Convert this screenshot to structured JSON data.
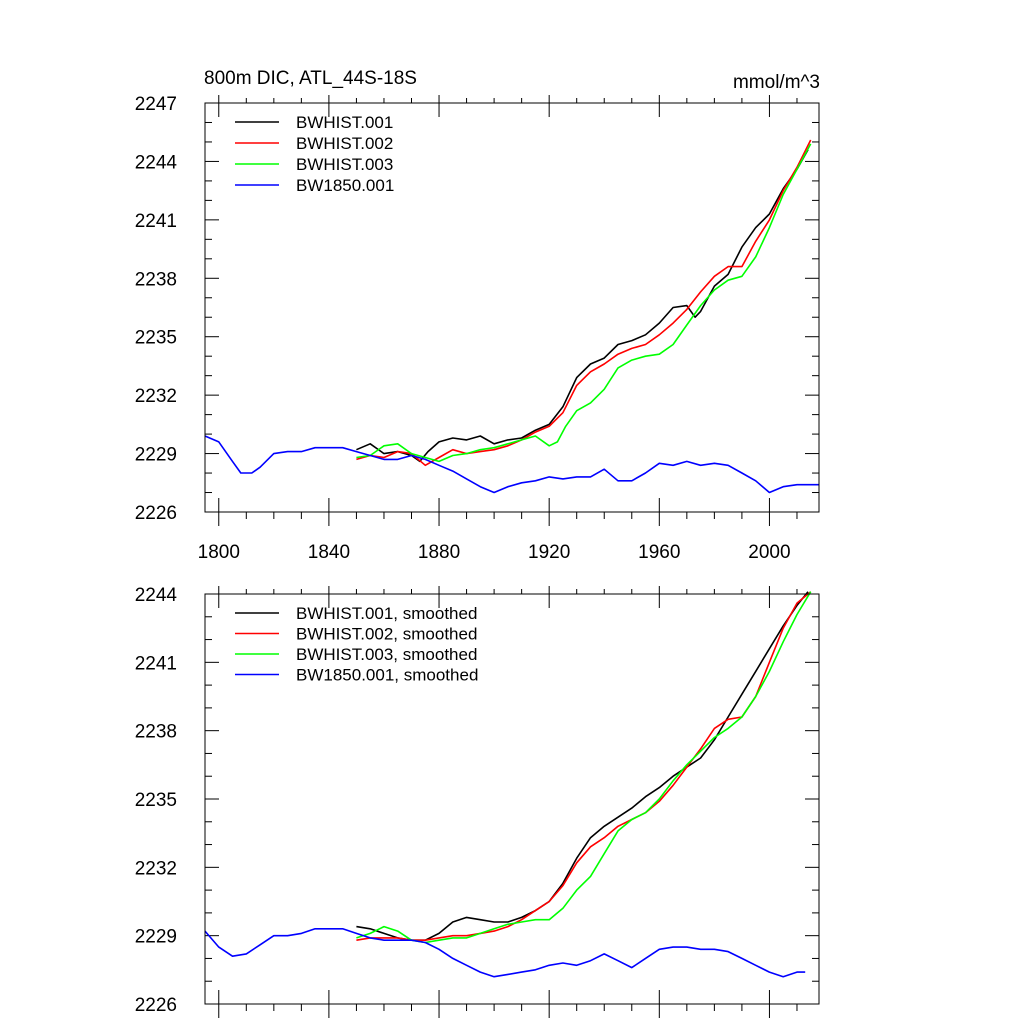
{
  "chart_data": [
    {
      "type": "line",
      "title_left": "800m DIC, ATL_44S-18S",
      "title_right": "mmol/m^3",
      "xlim": [
        1795,
        2018
      ],
      "ylim": [
        2226,
        2247
      ],
      "yticks": [
        "2226",
        "2229",
        "2232",
        "2235",
        "2238",
        "2241",
        "2244",
        "2247"
      ],
      "xticks": [
        "1800",
        "1840",
        "1880",
        "1920",
        "1960",
        "2000"
      ],
      "legend_position": "top-left",
      "series": [
        {
          "name": "BWHIST.001",
          "color": "#000000",
          "x": [
            1850,
            1855,
            1860,
            1865,
            1870,
            1873,
            1876,
            1880,
            1885,
            1890,
            1895,
            1900,
            1905,
            1910,
            1915,
            1920,
            1925,
            1930,
            1935,
            1940,
            1945,
            1950,
            1955,
            1960,
            1965,
            1970,
            1973,
            1975,
            1980,
            1985,
            1990,
            1995,
            2000,
            2005,
            2010,
            2014
          ],
          "y": [
            2229.2,
            2229.5,
            2229.0,
            2229.1,
            2228.9,
            2228.6,
            2229.1,
            2229.6,
            2229.8,
            2229.7,
            2229.9,
            2229.5,
            2229.7,
            2229.8,
            2230.2,
            2230.5,
            2231.4,
            2232.9,
            2233.6,
            2233.9,
            2234.6,
            2234.8,
            2235.1,
            2235.7,
            2236.5,
            2236.6,
            2236.0,
            2236.3,
            2237.6,
            2238.2,
            2239.6,
            2240.6,
            2241.3,
            2242.6,
            2243.6,
            2244.6
          ]
        },
        {
          "name": "BWHIST.002",
          "color": "#ff0000",
          "x": [
            1850,
            1855,
            1860,
            1865,
            1870,
            1875,
            1880,
            1885,
            1890,
            1895,
            1900,
            1905,
            1910,
            1915,
            1920,
            1925,
            1930,
            1935,
            1940,
            1945,
            1950,
            1955,
            1960,
            1965,
            1970,
            1975,
            1980,
            1985,
            1990,
            1995,
            2000,
            2005,
            2010,
            2015
          ],
          "y": [
            2228.7,
            2228.9,
            2228.8,
            2229.1,
            2229.0,
            2228.4,
            2228.8,
            2229.2,
            2229.0,
            2229.1,
            2229.2,
            2229.4,
            2229.7,
            2230.1,
            2230.4,
            2231.1,
            2232.5,
            2233.2,
            2233.6,
            2234.1,
            2234.4,
            2234.6,
            2235.1,
            2235.7,
            2236.4,
            2237.3,
            2238.1,
            2238.6,
            2238.6,
            2239.9,
            2241.0,
            2242.5,
            2243.7,
            2245.1
          ]
        },
        {
          "name": "BWHIST.003",
          "color": "#00ff00",
          "x": [
            1850,
            1855,
            1860,
            1865,
            1870,
            1875,
            1880,
            1885,
            1890,
            1895,
            1900,
            1905,
            1910,
            1915,
            1920,
            1923,
            1926,
            1930,
            1935,
            1940,
            1945,
            1950,
            1955,
            1960,
            1965,
            1970,
            1975,
            1980,
            1985,
            1990,
            1995,
            2000,
            2005,
            2010,
            2015
          ],
          "y": [
            2228.8,
            2228.9,
            2229.4,
            2229.5,
            2229.0,
            2228.8,
            2228.6,
            2228.9,
            2229.0,
            2229.2,
            2229.3,
            2229.5,
            2229.7,
            2229.9,
            2229.4,
            2229.6,
            2230.4,
            2231.2,
            2231.6,
            2232.3,
            2233.4,
            2233.8,
            2234.0,
            2234.1,
            2234.6,
            2235.6,
            2236.6,
            2237.4,
            2237.9,
            2238.1,
            2239.1,
            2240.6,
            2242.3,
            2243.6,
            2244.9
          ]
        },
        {
          "name": "BW1850.001",
          "color": "#0000ff",
          "x": [
            1795,
            1800,
            1805,
            1808,
            1812,
            1815,
            1820,
            1825,
            1830,
            1835,
            1840,
            1845,
            1850,
            1855,
            1860,
            1865,
            1870,
            1875,
            1880,
            1885,
            1890,
            1895,
            1900,
            1905,
            1910,
            1915,
            1920,
            1925,
            1930,
            1935,
            1940,
            1945,
            1950,
            1955,
            1960,
            1965,
            1970,
            1975,
            1980,
            1985,
            1990,
            1995,
            2000,
            2005,
            2010,
            2018
          ],
          "y": [
            2229.9,
            2229.6,
            2228.6,
            2228.0,
            2228.0,
            2228.3,
            2229.0,
            2229.1,
            2229.1,
            2229.3,
            2229.3,
            2229.3,
            2229.1,
            2228.9,
            2228.7,
            2228.7,
            2228.9,
            2228.7,
            2228.4,
            2228.1,
            2227.7,
            2227.3,
            2227.0,
            2227.3,
            2227.5,
            2227.6,
            2227.8,
            2227.7,
            2227.8,
            2227.8,
            2228.2,
            2227.6,
            2227.6,
            2228.0,
            2228.5,
            2228.4,
            2228.6,
            2228.4,
            2228.5,
            2228.4,
            2228.0,
            2227.6,
            2227.0,
            2227.3,
            2227.4,
            2227.4
          ]
        }
      ]
    },
    {
      "type": "line",
      "title_left": "",
      "title_right": "",
      "xlim": [
        1795,
        2018
      ],
      "ylim": [
        2226,
        2244
      ],
      "yticks": [
        "2226",
        "2229",
        "2232",
        "2235",
        "2238",
        "2241",
        "2244"
      ],
      "xticks": [],
      "legend_position": "top-left",
      "series": [
        {
          "name": "BWHIST.001, smoothed",
          "color": "#000000",
          "x": [
            1850,
            1855,
            1860,
            1865,
            1870,
            1875,
            1880,
            1885,
            1890,
            1895,
            1900,
            1905,
            1910,
            1915,
            1920,
            1925,
            1930,
            1935,
            1940,
            1945,
            1950,
            1955,
            1960,
            1965,
            1970,
            1975,
            1980,
            1985,
            1990,
            1995,
            2000,
            2005,
            2010,
            2014
          ],
          "y": [
            2229.4,
            2229.3,
            2229.1,
            2228.9,
            2228.8,
            2228.8,
            2229.1,
            2229.6,
            2229.8,
            2229.7,
            2229.6,
            2229.6,
            2229.8,
            2230.1,
            2230.5,
            2231.3,
            2232.4,
            2233.3,
            2233.8,
            2234.2,
            2234.6,
            2235.1,
            2235.5,
            2236.0,
            2236.4,
            2236.8,
            2237.6,
            2238.6,
            2239.6,
            2240.6,
            2241.6,
            2242.6,
            2243.5,
            2244.1
          ]
        },
        {
          "name": "BWHIST.002, smoothed",
          "color": "#ff0000",
          "x": [
            1850,
            1855,
            1860,
            1865,
            1870,
            1875,
            1880,
            1885,
            1890,
            1895,
            1900,
            1905,
            1910,
            1915,
            1920,
            1925,
            1930,
            1935,
            1940,
            1945,
            1950,
            1955,
            1960,
            1965,
            1970,
            1975,
            1980,
            1985,
            1990,
            1995,
            2000,
            2005,
            2010,
            2015
          ],
          "y": [
            2228.8,
            2228.9,
            2228.9,
            2228.9,
            2228.8,
            2228.8,
            2228.9,
            2229.0,
            2229.0,
            2229.1,
            2229.2,
            2229.4,
            2229.7,
            2230.1,
            2230.5,
            2231.2,
            2232.2,
            2232.9,
            2233.3,
            2233.8,
            2234.1,
            2234.4,
            2234.9,
            2235.6,
            2236.4,
            2237.2,
            2238.1,
            2238.5,
            2238.6,
            2239.5,
            2241.0,
            2242.5,
            2243.6,
            2244.1
          ]
        },
        {
          "name": "BWHIST.003, smoothed",
          "color": "#00ff00",
          "x": [
            1850,
            1855,
            1860,
            1865,
            1870,
            1875,
            1880,
            1885,
            1890,
            1895,
            1900,
            1905,
            1910,
            1915,
            1920,
            1925,
            1930,
            1935,
            1940,
            1945,
            1950,
            1955,
            1960,
            1965,
            1970,
            1975,
            1980,
            1985,
            1990,
            1995,
            2000,
            2005,
            2010,
            2015
          ],
          "y": [
            2228.9,
            2229.1,
            2229.4,
            2229.2,
            2228.8,
            2228.7,
            2228.8,
            2228.9,
            2228.9,
            2229.1,
            2229.3,
            2229.5,
            2229.6,
            2229.7,
            2229.7,
            2230.2,
            2231.0,
            2231.6,
            2232.6,
            2233.6,
            2234.1,
            2234.4,
            2235.0,
            2235.8,
            2236.5,
            2237.1,
            2237.7,
            2238.1,
            2238.6,
            2239.5,
            2240.6,
            2241.9,
            2243.1,
            2244.1
          ]
        },
        {
          "name": "BW1850.001, smoothed",
          "color": "#0000ff",
          "x": [
            1795,
            1800,
            1805,
            1810,
            1815,
            1820,
            1825,
            1830,
            1835,
            1840,
            1845,
            1850,
            1855,
            1860,
            1865,
            1870,
            1875,
            1880,
            1885,
            1890,
            1895,
            1900,
            1905,
            1910,
            1915,
            1920,
            1925,
            1930,
            1935,
            1940,
            1945,
            1950,
            1955,
            1960,
            1965,
            1970,
            1975,
            1980,
            1985,
            1990,
            1995,
            2000,
            2005,
            2010,
            2013
          ],
          "y": [
            2229.2,
            2228.5,
            2228.1,
            2228.2,
            2228.6,
            2229.0,
            2229.0,
            2229.1,
            2229.3,
            2229.3,
            2229.3,
            2229.1,
            2228.9,
            2228.8,
            2228.8,
            2228.8,
            2228.7,
            2228.4,
            2228.0,
            2227.7,
            2227.4,
            2227.2,
            2227.3,
            2227.4,
            2227.5,
            2227.7,
            2227.8,
            2227.7,
            2227.9,
            2228.2,
            2227.9,
            2227.6,
            2228.0,
            2228.4,
            2228.5,
            2228.5,
            2228.4,
            2228.4,
            2228.3,
            2228.0,
            2227.7,
            2227.4,
            2227.2,
            2227.4,
            2227.4
          ]
        }
      ]
    }
  ]
}
